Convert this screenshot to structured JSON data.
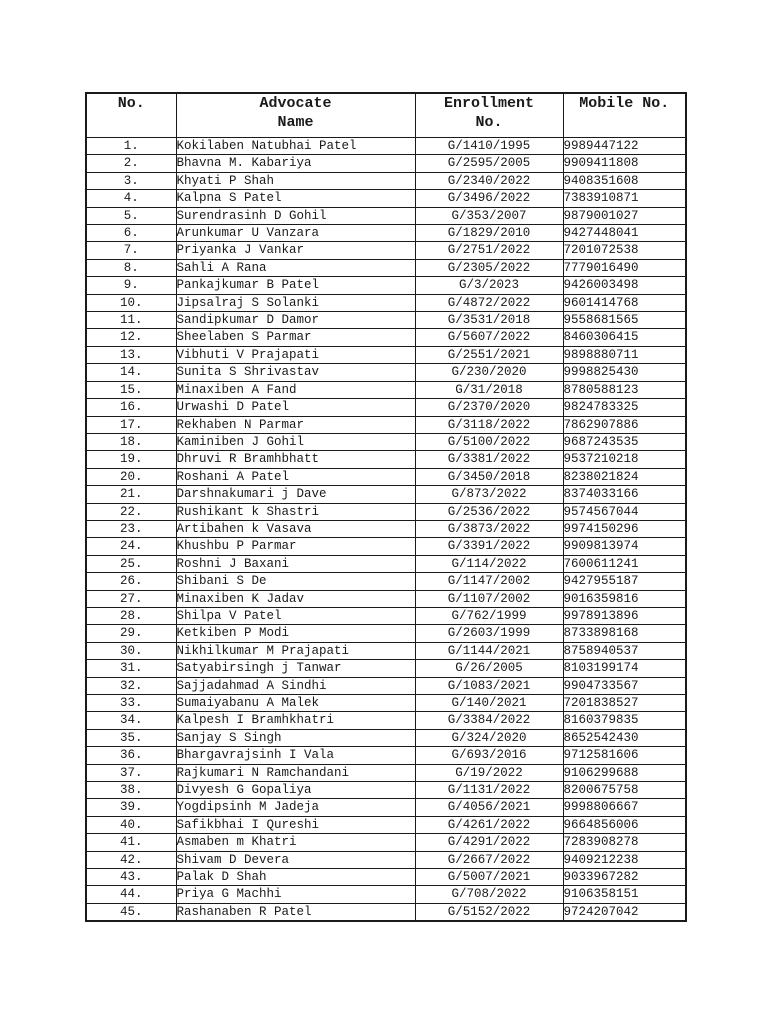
{
  "page": {
    "background_color": "#ffffff",
    "border_color": "#1a1a1a",
    "text_color": "#1a1a1a"
  },
  "table": {
    "headers": {
      "no": "No.",
      "name": "Advocate Name",
      "enrollment": "Enrollment No.",
      "mobile": "Mobile No."
    },
    "rows": [
      {
        "no": "1.",
        "name": "Kokilaben Natubhai Patel",
        "enrollment": "G/1410/1995",
        "mobile": "9989447122"
      },
      {
        "no": "2.",
        "name": "Bhavna M. Kabariya",
        "enrollment": "G/2595/2005",
        "mobile": "9909411808"
      },
      {
        "no": "3.",
        "name": "Khyati P Shah",
        "enrollment": "G/2340/2022",
        "mobile": "9408351608"
      },
      {
        "no": "4.",
        "name": "Kalpna S Patel",
        "enrollment": "G/3496/2022",
        "mobile": "7383910871"
      },
      {
        "no": "5.",
        "name": "Surendrasinh D Gohil",
        "enrollment": "G/353/2007",
        "mobile": "9879001027"
      },
      {
        "no": "6.",
        "name": "Arunkumar U Vanzara",
        "enrollment": "G/1829/2010",
        "mobile": "9427448041"
      },
      {
        "no": "7.",
        "name": "Priyanka J Vankar",
        "enrollment": "G/2751/2022",
        "mobile": "7201072538"
      },
      {
        "no": "8.",
        "name": "Sahli A Rana",
        "enrollment": "G/2305/2022",
        "mobile": "7779016490"
      },
      {
        "no": "9.",
        "name": "Pankajkumar B Patel",
        "enrollment": "G/3/2023",
        "mobile": "9426003498"
      },
      {
        "no": "10.",
        "name": "Jipsalraj S Solanki",
        "enrollment": "G/4872/2022",
        "mobile": "9601414768"
      },
      {
        "no": "11.",
        "name": "Sandipkumar D Damor",
        "enrollment": "G/3531/2018",
        "mobile": "9558681565"
      },
      {
        "no": "12.",
        "name": "Sheelaben S Parmar",
        "enrollment": "G/5607/2022",
        "mobile": "8460306415"
      },
      {
        "no": "13.",
        "name": "Vibhuti V Prajapati",
        "enrollment": "G/2551/2021",
        "mobile": "9898880711"
      },
      {
        "no": "14.",
        "name": "Sunita S Shrivastav",
        "enrollment": "G/230/2020",
        "mobile": "9998825430"
      },
      {
        "no": "15.",
        "name": "Minaxiben A Fand",
        "enrollment": "G/31/2018",
        "mobile": "8780588123"
      },
      {
        "no": "16.",
        "name": "Urwashi D Patel",
        "enrollment": "G/2370/2020",
        "mobile": "9824783325"
      },
      {
        "no": "17.",
        "name": "Rekhaben N Parmar",
        "enrollment": "G/3118/2022",
        "mobile": "7862907886"
      },
      {
        "no": "18.",
        "name": "Kaminiben J Gohil",
        "enrollment": "G/5100/2022",
        "mobile": "9687243535"
      },
      {
        "no": "19.",
        "name": "Dhruvi R Bramhbhatt",
        "enrollment": "G/3381/2022",
        "mobile": "9537210218"
      },
      {
        "no": "20.",
        "name": "Roshani A Patel",
        "enrollment": "G/3450/2018",
        "mobile": "8238021824"
      },
      {
        "no": "21.",
        "name": "Darshnakumari j Dave",
        "enrollment": "G/873/2022",
        "mobile": "8374033166"
      },
      {
        "no": "22.",
        "name": "Rushikant k Shastri",
        "enrollment": "G/2536/2022",
        "mobile": "9574567044"
      },
      {
        "no": "23.",
        "name": "Artibahen k Vasava",
        "enrollment": "G/3873/2022",
        "mobile": "9974150296"
      },
      {
        "no": "24.",
        "name": "Khushbu P Parmar",
        "enrollment": "G/3391/2022",
        "mobile": "9909813974"
      },
      {
        "no": "25.",
        "name": "Roshni J Baxani",
        "enrollment": "G/114/2022",
        "mobile": "7600611241"
      },
      {
        "no": "26.",
        "name": "Shibani S De",
        "enrollment": "G/1147/2002",
        "mobile": "9427955187"
      },
      {
        "no": "27.",
        "name": "Minaxiben K Jadav",
        "enrollment": "G/1107/2002",
        "mobile": "9016359816"
      },
      {
        "no": "28.",
        "name": "Shilpa V Patel",
        "enrollment": "G/762/1999",
        "mobile": "9978913896"
      },
      {
        "no": "29.",
        "name": "Ketkiben P Modi",
        "enrollment": "G/2603/1999",
        "mobile": "8733898168"
      },
      {
        "no": "30.",
        "name": "Nikhilkumar M Prajapati",
        "enrollment": "G/1144/2021",
        "mobile": "8758940537"
      },
      {
        "no": "31.",
        "name": "Satyabirsingh j Tanwar",
        "enrollment": "G/26/2005",
        "mobile": "8103199174"
      },
      {
        "no": "32.",
        "name": "Sajjadahmad A Sindhi",
        "enrollment": "G/1083/2021",
        "mobile": "9904733567"
      },
      {
        "no": "33.",
        "name": "Sumaiyabanu A Malek",
        "enrollment": "G/140/2021",
        "mobile": "7201838527"
      },
      {
        "no": "34.",
        "name": "Kalpesh I Bramhkhatri",
        "enrollment": "G/3384/2022",
        "mobile": "8160379835"
      },
      {
        "no": "35.",
        "name": "Sanjay S Singh",
        "enrollment": "G/324/2020",
        "mobile": "8652542430"
      },
      {
        "no": "36.",
        "name": "Bhargavrajsinh I Vala",
        "enrollment": "G/693/2016",
        "mobile": "9712581606"
      },
      {
        "no": "37.",
        "name": "Rajkumari N Ramchandani",
        "enrollment": "G/19/2022",
        "mobile": "9106299688"
      },
      {
        "no": "38.",
        "name": "Divyesh G Gopaliya",
        "enrollment": "G/1131/2022",
        "mobile": "8200675758"
      },
      {
        "no": "39.",
        "name": "Yogdipsinh M Jadeja",
        "enrollment": "G/4056/2021",
        "mobile": "9998806667"
      },
      {
        "no": "40.",
        "name": "Safikbhai I Qureshi",
        "enrollment": "G/4261/2022",
        "mobile": "9664856006"
      },
      {
        "no": "41.",
        "name": "Asmaben m Khatri",
        "enrollment": "G/4291/2022",
        "mobile": "7283908278"
      },
      {
        "no": "42.",
        "name": "Shivam D Devera",
        "enrollment": "G/2667/2022",
        "mobile": "9409212238"
      },
      {
        "no": "43.",
        "name": "Palak D Shah",
        "enrollment": "G/5007/2021",
        "mobile": "9033967282"
      },
      {
        "no": "44.",
        "name": "Priya G Machhi",
        "enrollment": "G/708/2022",
        "mobile": "9106358151"
      },
      {
        "no": "45.",
        "name": "Rashanaben R Patel",
        "enrollment": "G/5152/2022",
        "mobile": "9724207042"
      }
    ]
  }
}
